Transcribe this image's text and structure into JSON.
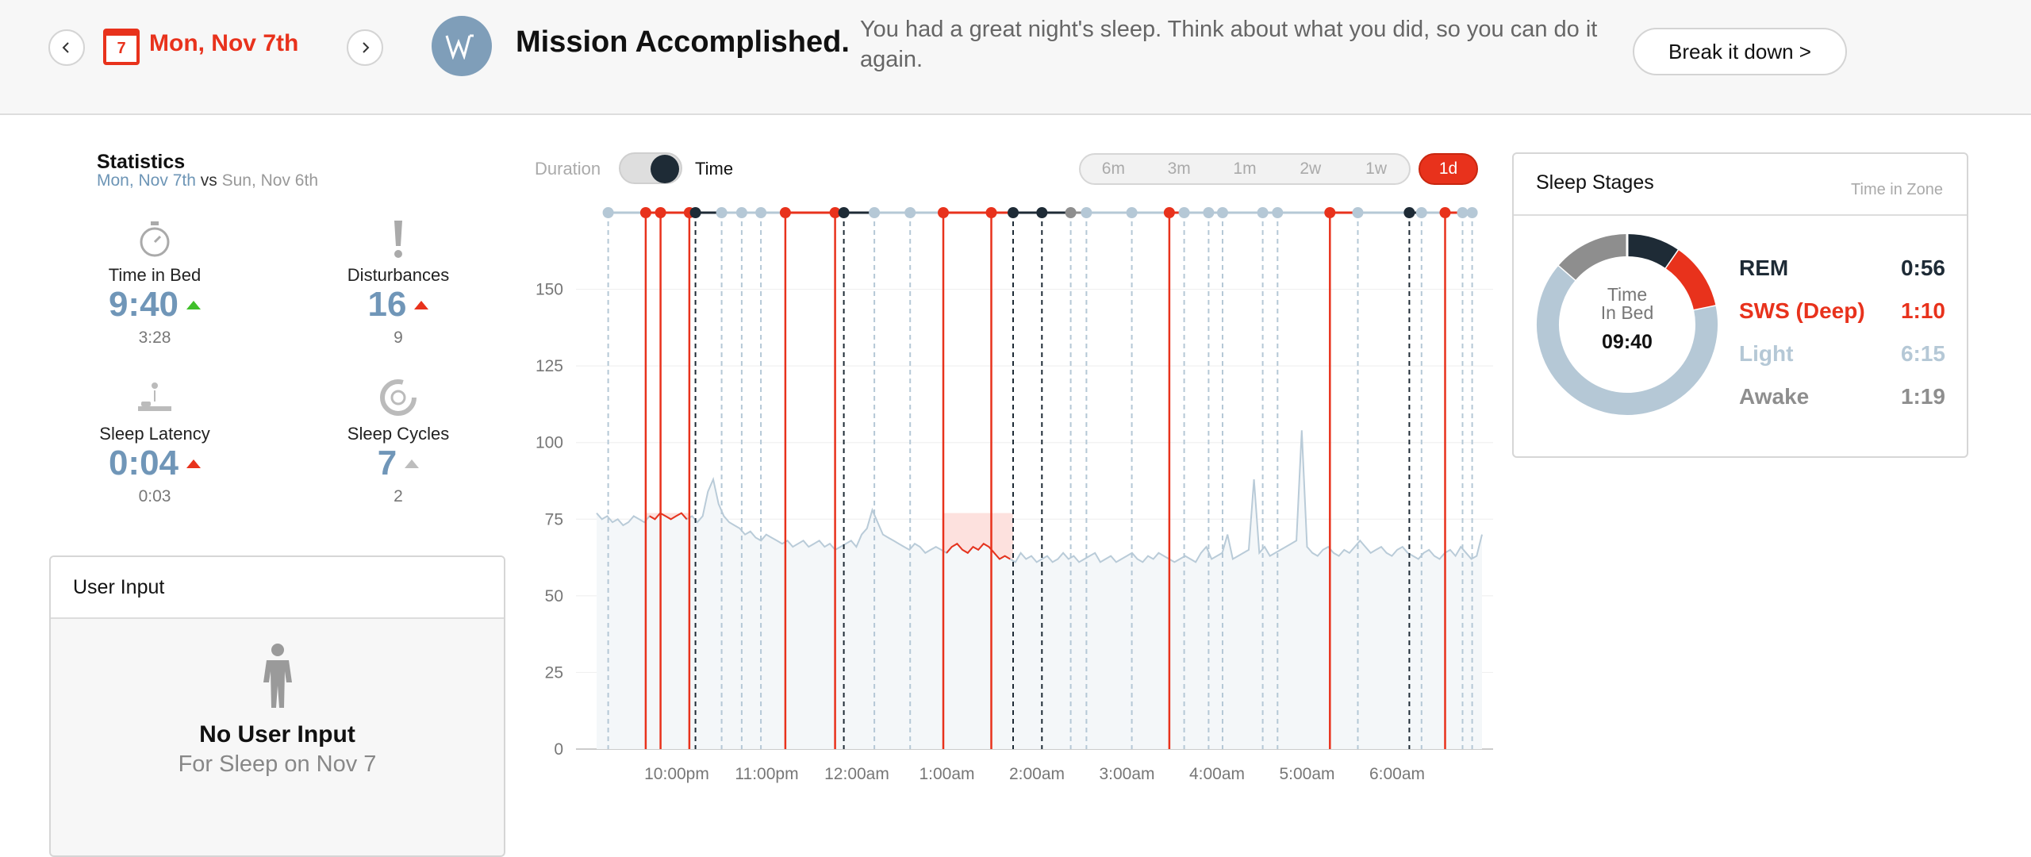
{
  "header": {
    "date_day": "7",
    "date_label": "Mon, Nov 7th",
    "mission": "Mission Accomplished.",
    "message": "You had a great night's sleep. Think about what you did, so you can do it again.",
    "break_label": "Break it down >",
    "colors": {
      "accent": "#e8321c",
      "logo": "#7f9eb9"
    },
    "icons": {
      "prev": "chevron-left-icon",
      "next": "chevron-right-icon",
      "calendar": "calendar-icon",
      "logo": "whoop-logo-icon"
    }
  },
  "statistics": {
    "title": "Statistics",
    "current": "Mon, Nov 7th",
    "vs": "vs",
    "previous": "Sun, Nov 6th",
    "items": [
      {
        "label": "Time in Bed",
        "value": "9:40",
        "prev": "3:28",
        "trend": "up",
        "trend_color": "#3fbf2a",
        "icon": "stopwatch-icon"
      },
      {
        "label": "Disturbances",
        "value": "16",
        "prev": "9",
        "trend": "up",
        "trend_color": "#e8321c",
        "icon": "exclamation-icon"
      },
      {
        "label": "Sleep Latency",
        "value": "0:04",
        "prev": "0:03",
        "trend": "up",
        "trend_color": "#e8321c",
        "icon": "bed-icon"
      },
      {
        "label": "Sleep Cycles",
        "value": "7",
        "prev": "2",
        "trend": "up",
        "trend_color": "#bdbdbd",
        "icon": "cycle-icon"
      }
    ]
  },
  "user_input": {
    "title": "User Input",
    "empty_title": "No User Input",
    "empty_sub": "For Sleep on Nov 7",
    "icon": "person-icon"
  },
  "controls": {
    "duration_label": "Duration",
    "time_label": "Time",
    "ranges": [
      "6m",
      "3m",
      "1m",
      "2w",
      "1w"
    ],
    "active_range": "1d"
  },
  "chart_data": {
    "type": "line",
    "title": "",
    "xlabel": "",
    "ylabel": "",
    "ylim": [
      0,
      175
    ],
    "yticks": [
      0,
      25,
      50,
      75,
      100,
      125,
      150
    ],
    "x_ticks": [
      "10:00pm",
      "11:00pm",
      "12:00am",
      "1:00am",
      "2:00am",
      "3:00am",
      "4:00am",
      "5:00am",
      "6:00am"
    ],
    "series": [
      {
        "values": [
          77,
          75,
          76,
          74,
          75,
          73,
          74,
          76,
          75,
          74,
          76,
          75,
          77,
          76,
          75,
          76,
          77,
          75,
          76,
          74,
          76,
          84,
          88,
          80,
          76,
          74,
          73,
          72,
          70,
          71,
          69,
          68,
          70,
          69,
          68,
          67,
          68,
          66,
          67,
          68,
          66,
          67,
          68,
          66,
          67,
          65,
          66,
          67,
          68,
          66,
          70,
          72,
          78,
          74,
          70,
          69,
          68,
          67,
          66,
          65,
          67,
          66,
          64,
          65,
          66,
          65,
          64,
          66,
          67,
          65,
          64,
          66,
          65,
          67,
          66,
          64,
          62,
          63,
          62,
          61,
          64,
          62,
          63,
          61,
          62,
          63,
          61,
          62,
          64,
          62,
          63,
          61,
          62,
          63,
          64,
          61,
          62,
          63,
          61,
          62,
          63,
          64,
          62,
          61,
          63,
          62,
          64,
          63,
          62,
          61,
          62,
          63,
          62,
          61,
          64,
          66,
          62,
          63,
          64,
          70,
          62,
          63,
          64,
          65,
          88,
          64,
          66,
          63,
          64,
          65,
          66,
          67,
          68,
          104,
          66,
          64,
          63,
          65,
          66,
          64,
          63,
          65,
          64,
          66,
          68,
          66,
          64,
          65,
          66,
          64,
          63,
          65,
          66,
          64,
          63,
          62,
          64,
          65,
          63,
          62,
          64,
          65,
          63,
          66,
          64,
          62,
          63,
          70
        ]
      }
    ],
    "sleep_bands": [
      {
        "stage": "deep",
        "start": 0.049,
        "end": 0.099
      },
      {
        "stage": "deep",
        "start": 0.39,
        "end": 0.47
      }
    ],
    "markers": [
      {
        "t": 0.006,
        "stage": "light"
      },
      {
        "t": 0.049,
        "stage": "deep"
      },
      {
        "t": 0.066,
        "stage": "deep"
      },
      {
        "t": 0.099,
        "stage": "deep"
      },
      {
        "t": 0.106,
        "stage": "rem"
      },
      {
        "t": 0.136,
        "stage": "light"
      },
      {
        "t": 0.159,
        "stage": "light"
      },
      {
        "t": 0.181,
        "stage": "light"
      },
      {
        "t": 0.209,
        "stage": "deep"
      },
      {
        "t": 0.266,
        "stage": "deep"
      },
      {
        "t": 0.276,
        "stage": "rem"
      },
      {
        "t": 0.311,
        "stage": "light"
      },
      {
        "t": 0.352,
        "stage": "light"
      },
      {
        "t": 0.39,
        "stage": "deep"
      },
      {
        "t": 0.445,
        "stage": "deep"
      },
      {
        "t": 0.47,
        "stage": "rem"
      },
      {
        "t": 0.503,
        "stage": "rem"
      },
      {
        "t": 0.536,
        "stage": "awake"
      },
      {
        "t": 0.554,
        "stage": "light"
      },
      {
        "t": 0.606,
        "stage": "light"
      },
      {
        "t": 0.649,
        "stage": "deep"
      },
      {
        "t": 0.666,
        "stage": "light"
      },
      {
        "t": 0.694,
        "stage": "light"
      },
      {
        "t": 0.71,
        "stage": "light"
      },
      {
        "t": 0.756,
        "stage": "light"
      },
      {
        "t": 0.773,
        "stage": "light"
      },
      {
        "t": 0.833,
        "stage": "deep"
      },
      {
        "t": 0.865,
        "stage": "light"
      },
      {
        "t": 0.924,
        "stage": "rem"
      },
      {
        "t": 0.938,
        "stage": "light"
      },
      {
        "t": 0.965,
        "stage": "deep"
      },
      {
        "t": 0.985,
        "stage": "light"
      },
      {
        "t": 0.996,
        "stage": "light"
      }
    ]
  },
  "sleep_stages": {
    "title": "Sleep Stages",
    "subtitle": "Time in Zone",
    "center_label_1": "Time",
    "center_label_2": "In Bed",
    "center_value": "09:40",
    "rows": [
      {
        "name": "REM",
        "value": "0:56",
        "minutes": 56,
        "color": "#1e2b36"
      },
      {
        "name": "SWS (Deep)",
        "value": "1:10",
        "minutes": 70,
        "color": "#e8321c"
      },
      {
        "name": "Light",
        "value": "6:15",
        "minutes": 375,
        "color": "#b5c8d6"
      },
      {
        "name": "Awake",
        "value": "1:19",
        "minutes": 79,
        "color": "#8e8e8e"
      }
    ]
  }
}
